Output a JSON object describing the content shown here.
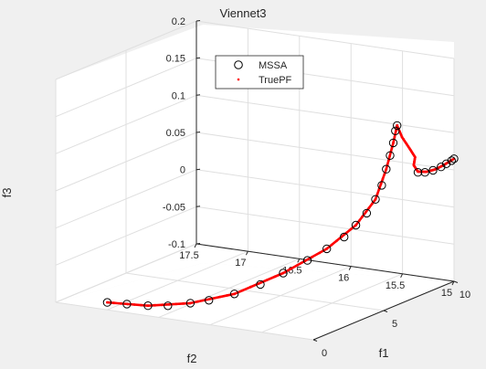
{
  "chart_data": {
    "type": "scatter",
    "title": "Viennet3",
    "xlabel": "f1",
    "ylabel": "f2",
    "zlabel": "f3",
    "projection": "3d",
    "grid": true,
    "legend_position": "top-left",
    "xlim": [
      0,
      10
    ],
    "ylim": [
      15,
      17.5
    ],
    "zlim": [
      -0.1,
      0.2
    ],
    "x_ticks": [
      "0",
      "5",
      "10"
    ],
    "y_ticks": [
      "15",
      "15.5",
      "16",
      "16.5",
      "17",
      "17.5"
    ],
    "z_ticks": [
      "-0.1",
      "-0.05",
      "0",
      "0.05",
      "0.1",
      "0.15",
      "0.2"
    ],
    "series": [
      {
        "name": "MSSA",
        "marker": "circle",
        "color": "#000000",
        "points": [
          [
            0.0,
            17.0,
            -0.09
          ],
          [
            0.15,
            16.83,
            -0.09
          ],
          [
            0.33,
            16.65,
            -0.09
          ],
          [
            0.5,
            16.48,
            -0.088
          ],
          [
            0.78,
            16.3,
            -0.083
          ],
          [
            1.0,
            16.15,
            -0.078
          ],
          [
            1.35,
            15.95,
            -0.068
          ],
          [
            1.8,
            15.76,
            -0.055
          ],
          [
            2.25,
            15.6,
            -0.04
          ],
          [
            2.8,
            15.44,
            -0.024
          ],
          [
            3.3,
            15.32,
            -0.01
          ],
          [
            3.8,
            15.22,
            0.004
          ],
          [
            4.2,
            15.16,
            0.018
          ],
          [
            4.6,
            15.11,
            0.032
          ],
          [
            5.0,
            15.08,
            0.048
          ],
          [
            5.3,
            15.06,
            0.065
          ],
          [
            5.55,
            15.05,
            0.085
          ],
          [
            5.75,
            15.04,
            0.102
          ],
          [
            5.9,
            15.03,
            0.118
          ],
          [
            6.05,
            15.03,
            0.133
          ],
          [
            6.1,
            15.02,
            0.14
          ],
          [
            7.8,
            15.05,
            0.063
          ],
          [
            8.3,
            15.05,
            0.059
          ],
          [
            8.8,
            15.04,
            0.058
          ],
          [
            9.3,
            15.03,
            0.059
          ],
          [
            9.6,
            15.02,
            0.061
          ],
          [
            9.9,
            15.01,
            0.063
          ],
          [
            10.0,
            15.0,
            0.065
          ]
        ]
      },
      {
        "name": "TruePF",
        "marker": "point",
        "color": "#ff0000",
        "segments": [
          [
            [
              0.0,
              17.0,
              -0.09
            ],
            [
              0.33,
              16.65,
              -0.09
            ],
            [
              0.78,
              16.3,
              -0.083
            ],
            [
              1.35,
              15.95,
              -0.068
            ],
            [
              2.25,
              15.6,
              -0.04
            ],
            [
              3.3,
              15.32,
              -0.01
            ],
            [
              4.2,
              15.16,
              0.018
            ],
            [
              5.0,
              15.08,
              0.048
            ],
            [
              5.55,
              15.05,
              0.085
            ],
            [
              5.9,
              15.03,
              0.118
            ],
            [
              6.1,
              15.02,
              0.14
            ]
          ],
          [
            [
              6.1,
              15.02,
              0.14
            ],
            [
              6.6,
              15.04,
              0.12
            ],
            [
              7.2,
              15.05,
              0.1
            ],
            [
              7.6,
              15.05,
              0.085
            ],
            [
              7.5,
              15.05,
              0.075
            ],
            [
              7.8,
              15.05,
              0.064
            ],
            [
              8.4,
              15.05,
              0.059
            ],
            [
              9.0,
              15.04,
              0.058
            ],
            [
              9.5,
              15.03,
              0.06
            ],
            [
              10.0,
              15.0,
              0.065
            ]
          ]
        ]
      }
    ]
  }
}
